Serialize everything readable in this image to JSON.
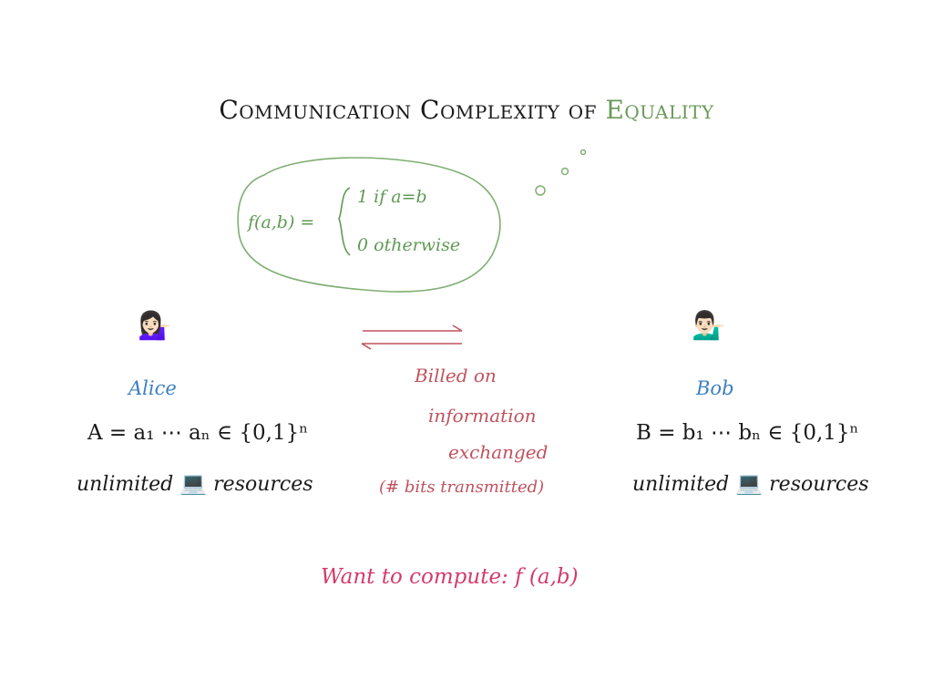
{
  "title": {
    "part1": "Communication Complexity of",
    "part2": "Equality"
  },
  "thought_bubble": {
    "function_lhs": "f(a,b) =",
    "case_1": "1 if a=b",
    "case_2": "0 otherwise"
  },
  "alice": {
    "icon": "person-tipping-hand-woman-icon",
    "emoji": "💁🏻‍♀️",
    "name": "Alice",
    "string": "A = a₁ ⋯ aₙ ∈ {0,1}ⁿ",
    "resources_prefix": "unlimited",
    "resources_suffix": "resources",
    "laptop_emoji": "💻"
  },
  "bob": {
    "icon": "person-tipping-hand-man-icon",
    "emoji": "💁🏻‍♂️",
    "name": "Bob",
    "string": "B = b₁ ⋯ bₙ ∈ {0,1}ⁿ",
    "resources_prefix": "unlimited",
    "resources_suffix": "resources",
    "laptop_emoji": "💻"
  },
  "channel": {
    "line1": "Billed on",
    "line2": "information",
    "line3": "exchanged",
    "line4": "(# bits transmitted)"
  },
  "goal": "Want to compute: f (a,b)",
  "colors": {
    "green": "#5f9a55",
    "blue": "#3c7fc4",
    "red": "#c0525e",
    "pink": "#d43a6c"
  }
}
